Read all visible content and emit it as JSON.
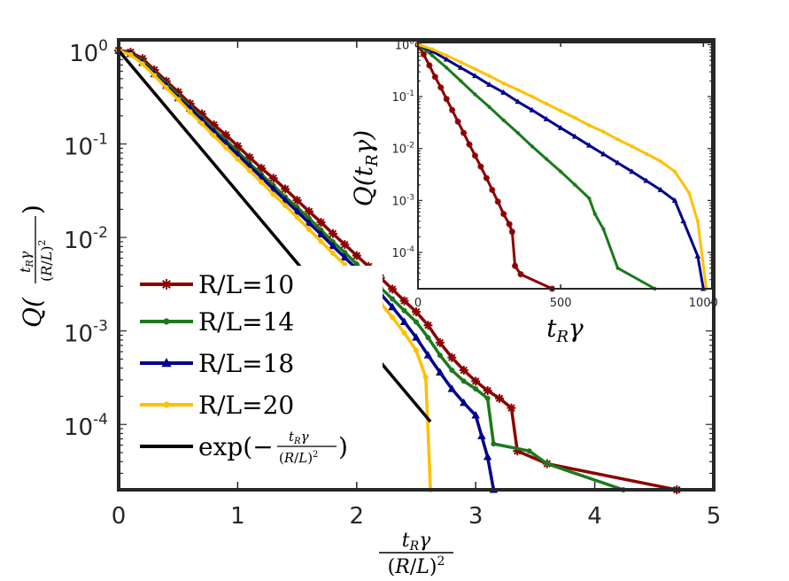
{
  "chart_data": [
    {
      "id": "main",
      "type": "line",
      "yscale": "log",
      "xlim": [
        0,
        5
      ],
      "ylim": [
        2e-05,
        1.3
      ],
      "xticks": [
        0,
        1,
        2,
        3,
        4,
        5
      ],
      "xtick_labels": [
        "0",
        "1",
        "2",
        "3",
        "4",
        "5"
      ],
      "yticks": [
        1,
        0.1,
        0.01,
        0.001,
        0.0001
      ],
      "ytick_base": "10",
      "ytick_exps": [
        "0",
        "-1",
        "-2",
        "-3",
        "-4"
      ],
      "xlabel": {
        "num": "t_Rγ",
        "den": "(R/L)^2"
      },
      "ylabel": "Q( t_Rγ / (R/L)^2 )",
      "legend": {
        "location": "lower-left",
        "entries": [
          "R/L=10",
          "R/L=14",
          "R/L=18",
          "R/L=20",
          "exp(−t_Rγ/(R/L)^2)"
        ]
      },
      "series": [
        {
          "name": "R/L=10",
          "color": "#8b0000",
          "marker": "asterisk",
          "x": [
            0.0,
            0.1,
            0.2,
            0.3,
            0.4,
            0.5,
            0.6,
            0.7,
            0.8,
            0.9,
            1.0,
            1.1,
            1.2,
            1.3,
            1.4,
            1.5,
            1.6,
            1.7,
            1.8,
            1.9,
            2.0,
            2.1,
            2.2,
            2.3,
            2.4,
            2.5,
            2.6,
            2.7,
            2.8,
            2.9,
            3.0,
            3.1,
            3.2,
            3.3,
            3.35,
            3.6,
            4.69
          ],
          "y": [
            1.0,
            0.96,
            0.82,
            0.62,
            0.47,
            0.36,
            0.27,
            0.21,
            0.16,
            0.125,
            0.095,
            0.072,
            0.055,
            0.043,
            0.033,
            0.025,
            0.019,
            0.0145,
            0.011,
            0.0084,
            0.0064,
            0.0049,
            0.0037,
            0.0028,
            0.0021,
            0.0016,
            0.00115,
            0.00075,
            0.00052,
            0.00038,
            0.00029,
            0.00023,
            0.00019,
            0.00015,
            5.2e-05,
            3.8e-05,
            2e-05
          ]
        },
        {
          "name": "R/L=14",
          "color": "#1a7a1a",
          "marker": "dot",
          "x": [
            0.0,
            0.1,
            0.2,
            0.3,
            0.4,
            0.5,
            0.6,
            0.7,
            0.8,
            0.9,
            1.0,
            1.1,
            1.2,
            1.3,
            1.4,
            1.5,
            1.6,
            1.7,
            1.8,
            1.9,
            2.0,
            2.1,
            2.2,
            2.3,
            2.4,
            2.5,
            2.6,
            2.7,
            2.8,
            2.9,
            3.0,
            3.1,
            3.15,
            3.45,
            3.6,
            4.24
          ],
          "y": [
            1.0,
            0.93,
            0.77,
            0.58,
            0.44,
            0.33,
            0.25,
            0.19,
            0.143,
            0.11,
            0.083,
            0.062,
            0.047,
            0.036,
            0.027,
            0.021,
            0.016,
            0.012,
            0.009,
            0.0069,
            0.0052,
            0.0039,
            0.0029,
            0.0022,
            0.00165,
            0.00125,
            0.00085,
            0.00055,
            0.00038,
            0.00029,
            0.00024,
            0.00019,
            6.2e-05,
            5.2e-05,
            3.8e-05,
            2e-05
          ]
        },
        {
          "name": "R/L=18",
          "color": "#00008b",
          "marker": "triangle",
          "x": [
            0.0,
            0.1,
            0.2,
            0.3,
            0.4,
            0.5,
            0.6,
            0.7,
            0.8,
            0.9,
            1.0,
            1.1,
            1.2,
            1.3,
            1.4,
            1.5,
            1.6,
            1.7,
            1.8,
            1.9,
            2.0,
            2.1,
            2.2,
            2.3,
            2.4,
            2.5,
            2.6,
            2.7,
            2.8,
            2.9,
            3.0,
            3.05,
            3.1,
            3.15
          ],
          "y": [
            1.0,
            0.92,
            0.74,
            0.56,
            0.42,
            0.31,
            0.24,
            0.18,
            0.135,
            0.102,
            0.077,
            0.058,
            0.044,
            0.033,
            0.025,
            0.019,
            0.0143,
            0.0108,
            0.0081,
            0.0061,
            0.0046,
            0.0034,
            0.0025,
            0.0018,
            0.00125,
            0.00085,
            0.00055,
            0.00036,
            0.00024,
            0.00017,
            0.000125,
            7.5e-05,
            4.5e-05,
            2e-05
          ]
        },
        {
          "name": "R/L=20",
          "color": "#ffc000",
          "marker": "dot",
          "x": [
            0.0,
            0.1,
            0.2,
            0.3,
            0.4,
            0.5,
            0.6,
            0.7,
            0.8,
            0.9,
            1.0,
            1.1,
            1.2,
            1.3,
            1.4,
            1.5,
            1.6,
            1.7,
            1.8,
            1.9,
            2.0,
            2.1,
            2.2,
            2.3,
            2.4,
            2.5,
            2.58,
            2.62
          ],
          "y": [
            1.0,
            0.9,
            0.72,
            0.54,
            0.4,
            0.3,
            0.22,
            0.165,
            0.123,
            0.092,
            0.069,
            0.052,
            0.039,
            0.029,
            0.022,
            0.0164,
            0.0122,
            0.0091,
            0.0068,
            0.0051,
            0.0038,
            0.0028,
            0.002,
            0.0014,
            0.00095,
            0.00062,
            0.00032,
            2e-05
          ]
        },
        {
          "name": "exp(−t_Rγ/(R/L)^2)",
          "color": "#000000",
          "marker": "none",
          "x": [
            0.0,
            2.62
          ],
          "y": [
            1.0,
            0.000107
          ]
        }
      ]
    },
    {
      "id": "inset",
      "type": "line",
      "yscale": "log",
      "xlim": [
        0,
        1030
      ],
      "ylim": [
        2e-05,
        1.1
      ],
      "xticks": [
        0,
        500,
        1000
      ],
      "xtick_labels": [
        "0",
        "500",
        "1000"
      ],
      "yticks": [
        1,
        0.1,
        0.01,
        0.001,
        0.0001
      ],
      "ytick_base": "10",
      "ytick_exps": [
        "0",
        "-1",
        "-2",
        "-3",
        "-4"
      ],
      "xlabel": "t_Rγ",
      "ylabel": "Q(t_Rγ)",
      "series": [
        {
          "name": "R/L=10",
          "color": "#8b0000",
          "marker": "asterisk",
          "x": [
            0,
            20,
            40,
            60,
            80,
            100,
            120,
            140,
            160,
            180,
            200,
            220,
            240,
            260,
            280,
            300,
            320,
            330,
            340,
            360,
            470
          ],
          "y": [
            1.0,
            0.65,
            0.4,
            0.24,
            0.15,
            0.09,
            0.055,
            0.033,
            0.02,
            0.012,
            0.0073,
            0.0045,
            0.0027,
            0.0016,
            0.00095,
            0.00055,
            0.00035,
            0.00025,
            5.5e-05,
            3.8e-05,
            2e-05
          ]
        },
        {
          "name": "R/L=14",
          "color": "#1a7a1a",
          "marker": "dot",
          "x": [
            0,
            50,
            100,
            150,
            200,
            250,
            300,
            350,
            400,
            450,
            500,
            550,
            600,
            620,
            650,
            700,
            830
          ],
          "y": [
            1.0,
            0.62,
            0.36,
            0.2,
            0.11,
            0.063,
            0.035,
            0.02,
            0.011,
            0.0063,
            0.0036,
            0.002,
            0.0011,
            0.00055,
            0.00028,
            5e-05,
            2e-05
          ]
        },
        {
          "name": "R/L=18",
          "color": "#00008b",
          "marker": "triangle",
          "x": [
            0,
            50,
            100,
            150,
            200,
            250,
            300,
            350,
            400,
            450,
            500,
            550,
            600,
            650,
            700,
            750,
            800,
            850,
            900,
            930,
            980,
            1000
          ],
          "y": [
            1.0,
            0.75,
            0.52,
            0.36,
            0.25,
            0.17,
            0.12,
            0.08,
            0.055,
            0.037,
            0.025,
            0.017,
            0.0115,
            0.0078,
            0.0053,
            0.0036,
            0.0024,
            0.0016,
            0.001,
            0.0004,
            8.5e-05,
            2e-05
          ]
        },
        {
          "name": "R/L=20",
          "color": "#ffc000",
          "marker": "dot",
          "x": [
            0,
            50,
            100,
            150,
            200,
            250,
            300,
            350,
            400,
            450,
            500,
            550,
            600,
            650,
            700,
            750,
            800,
            850,
            900,
            950,
            980,
            1010
          ],
          "y": [
            1.0,
            0.82,
            0.62,
            0.46,
            0.34,
            0.25,
            0.18,
            0.135,
            0.1,
            0.073,
            0.053,
            0.039,
            0.028,
            0.021,
            0.015,
            0.011,
            0.0079,
            0.0057,
            0.0036,
            0.0014,
            0.0004,
            2e-05
          ]
        }
      ]
    }
  ]
}
